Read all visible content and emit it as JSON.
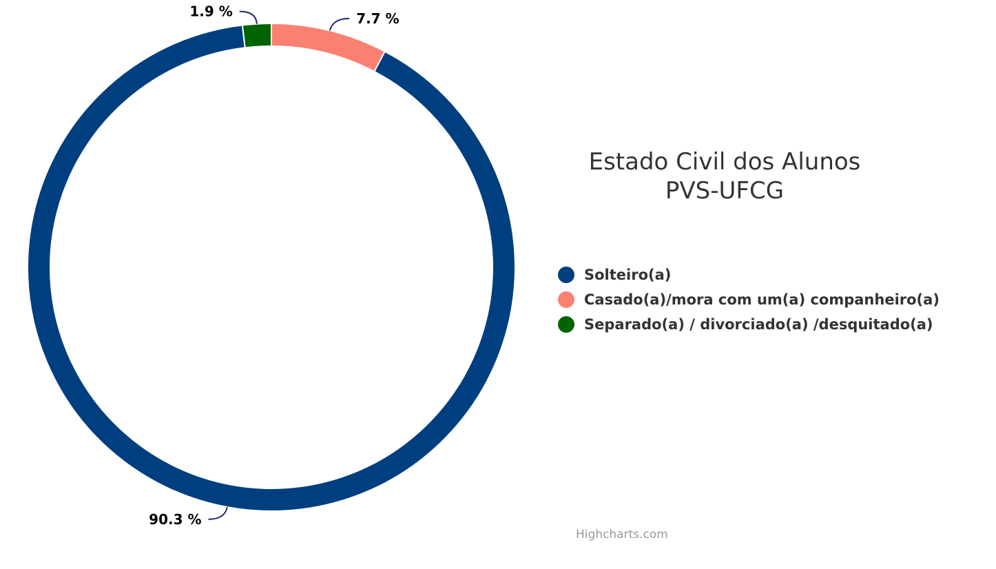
{
  "chart_data": {
    "type": "pie",
    "variant": "donut",
    "title_lines": [
      "Estado Civil dos Alunos",
      "PVS-UFCG"
    ],
    "start_angle_deg": -4,
    "slices": [
      {
        "name": "Solteiro(a)",
        "value": 90.3,
        "label": "90.3 %",
        "color": "#003f7f"
      },
      {
        "name": "Casado(a)/mora com um(a) companheiro(a)",
        "value": 7.7,
        "label": "7.7 %",
        "color": "#fa8072"
      },
      {
        "name": "Separado(a) / divorciado(a) /desquitado(a)",
        "value": 1.9,
        "label": "1.9 %",
        "color": "#006400"
      }
    ],
    "legend_position": "right",
    "connector_color": "#1f2a6e"
  },
  "credits": "Highcharts.com"
}
